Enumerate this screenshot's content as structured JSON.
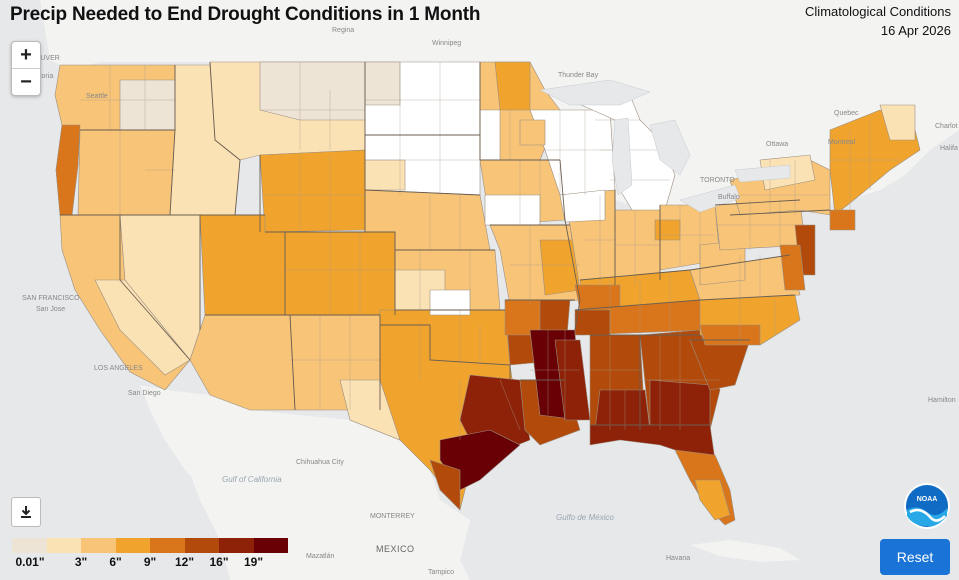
{
  "title": "Precip Needed to End Drought Conditions in 1 Month",
  "meta": {
    "source": "Climatological Conditions",
    "date": "16 Apr 2026"
  },
  "controls": {
    "zoom_in": "+",
    "zoom_out": "−",
    "reset": "Reset"
  },
  "legend": {
    "colors": [
      "#ede4d6",
      "#fbe2b4",
      "#f7c478",
      "#f0a42e",
      "#d9761c",
      "#b24a0c",
      "#8e2208",
      "#680006"
    ],
    "labels": [
      "0.01\"",
      "3\"",
      "6\"",
      "9\"",
      "12\"",
      "16\"",
      "19\""
    ]
  },
  "map_labels": {
    "vancouver": "VANCOUVER",
    "victoria": "Victoria",
    "seattle": "Seattle",
    "regina": "Regina",
    "winnipeg": "Winnipeg",
    "thunder_bay": "Thunder Bay",
    "quebec": "Quebec",
    "montreal": "Montreal",
    "ottawa": "Ottawa",
    "toronto": "TORONTO",
    "buffalo": "Buffalo",
    "charlottetown": "Charlot",
    "halifax": "Halifa",
    "san_francisco": "SAN FRANCISCO",
    "san_jose": "San Jose",
    "los_angeles": "LOS ANGELES",
    "san_diego": "San Diego",
    "chihuahua": "Chihuahua City",
    "gulf_california": "Gulf of California",
    "monterrey": "MONTERREY",
    "gulf_mexico": "Gulfo de México",
    "mazatlan": "Mazatlán",
    "mexico": "MEXICO",
    "tampico": "Tampico",
    "havana": "Havana",
    "hamilton": "Hamilton",
    "sa": "SA"
  },
  "logo_text": "NOAA"
}
